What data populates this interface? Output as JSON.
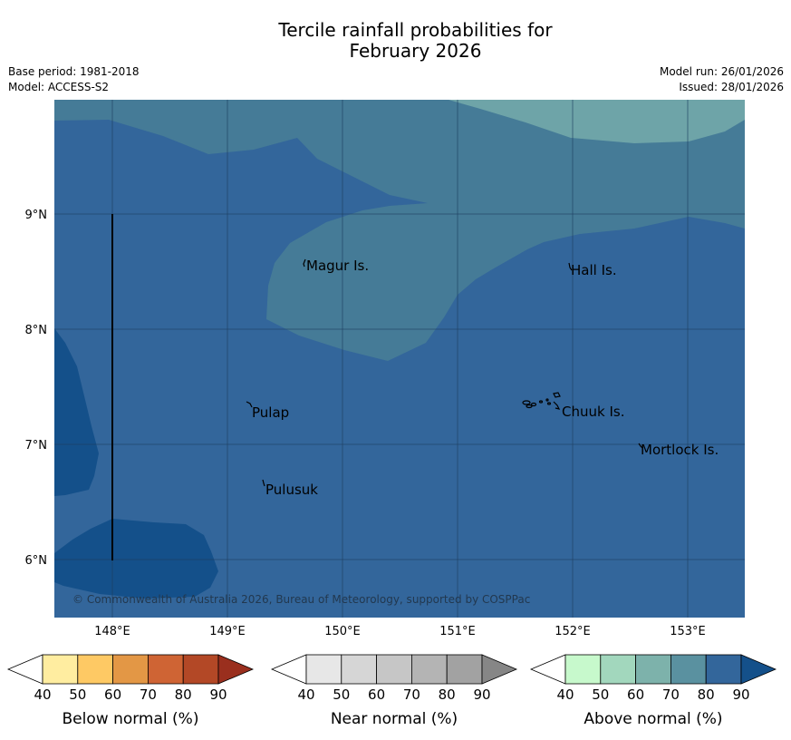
{
  "title": {
    "line1": "Tercile rainfall probabilities for",
    "line2": "February 2026"
  },
  "meta": {
    "base_period": "Base period: 1981-2018",
    "model": "Model: ACCESS-S2",
    "model_run": "Model run: 26/01/2026",
    "issued": "Issued: 28/01/2026"
  },
  "map": {
    "lat_labels": [
      "9°N",
      "8°N",
      "7°N",
      "6°N"
    ],
    "lon_labels": [
      "148°E",
      "149°E",
      "150°E",
      "151°E",
      "152°E",
      "153°E"
    ],
    "places": [
      "Magur Is.",
      "Hall Is.",
      "Pulap",
      "Chuuk Is.",
      "Mortlock Is.",
      "Pulusuk"
    ],
    "copyright": "© Commonwealth of Australia 2026, Bureau of Meteorology, supported by COSPPac",
    "colors": {
      "above_80": "#33669b",
      "above_70": "#457b97",
      "above_60": "#6ea4a8",
      "above_90": "#14508a",
      "grid": "#1e3e60"
    }
  },
  "colorbars": [
    {
      "title": "Below normal (%)",
      "ticks": [
        "40",
        "50",
        "60",
        "70",
        "80",
        "90"
      ],
      "colors": [
        "#ffffff",
        "#ffeda0",
        "#fec964",
        "#e39745",
        "#cf6434",
        "#b34826",
        "#9a2f1e"
      ]
    },
    {
      "title": "Near normal (%)",
      "ticks": [
        "40",
        "50",
        "60",
        "70",
        "80",
        "90"
      ],
      "colors": [
        "#ffffff",
        "#e7e7e7",
        "#d6d6d6",
        "#c6c6c6",
        "#b4b4b4",
        "#a2a2a2",
        "#868686"
      ]
    },
    {
      "title": "Above normal (%)",
      "ticks": [
        "40",
        "50",
        "60",
        "70",
        "80",
        "90"
      ],
      "colors": [
        "#ffffff",
        "#c7f9cc",
        "#a2d7bd",
        "#7db2ab",
        "#5a91a0",
        "#33669b",
        "#14508a"
      ]
    }
  ]
}
